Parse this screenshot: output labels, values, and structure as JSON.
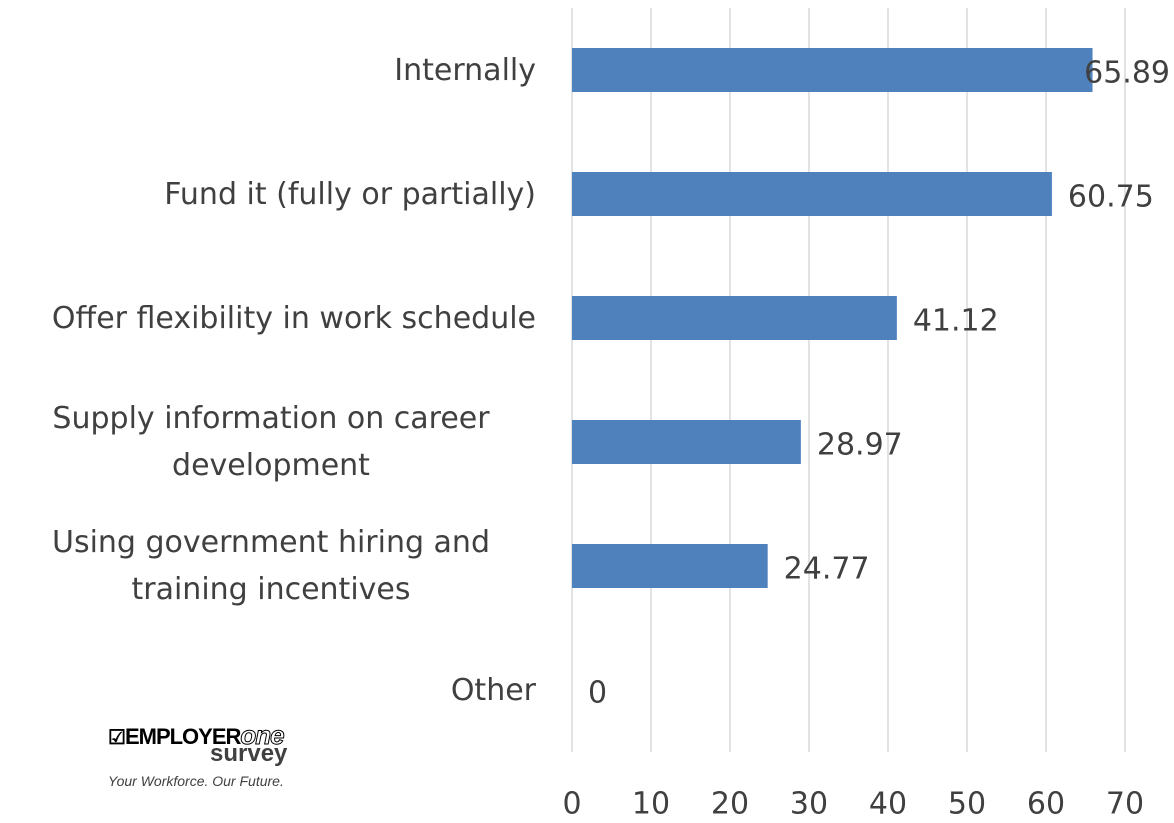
{
  "chart_data": {
    "type": "bar",
    "orientation": "horizontal",
    "categories": [
      "Internally",
      "Fund it (fully or partially)",
      "Offer flexibility in work schedule",
      "Supply information on career development",
      "Using government hiring and training incentives",
      "Other"
    ],
    "values": [
      65.89,
      60.75,
      41.12,
      28.97,
      24.77,
      0
    ],
    "color": "#4f81bd",
    "xlim": [
      0,
      70
    ],
    "xticks": [
      0,
      10,
      20,
      30,
      40,
      50,
      60,
      70
    ],
    "grid": true
  },
  "logo": {
    "brand_left": "EMPLOYER",
    "brand_right": "one",
    "brand_sub": "survey",
    "tagline": "Your Workforce.  Our Future."
  }
}
